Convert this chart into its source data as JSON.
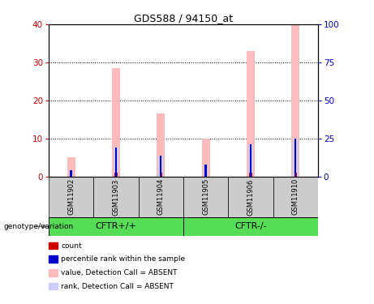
{
  "title": "GDS588 / 94150_at",
  "samples": [
    "GSM11902",
    "GSM11903",
    "GSM11904",
    "GSM11905",
    "GSM11906",
    "GSM11910"
  ],
  "value_absent": [
    5.0,
    28.5,
    16.5,
    10.0,
    33.0,
    40.0
  ],
  "rank_absent": [
    1.5,
    7.5,
    5.5,
    3.0,
    8.5,
    10.0
  ],
  "count_val": [
    1.0,
    1.0,
    1.0,
    1.0,
    1.0,
    1.0
  ],
  "pct_rank_val": [
    1.5,
    7.5,
    5.5,
    3.0,
    8.5,
    10.0
  ],
  "ylim_left": [
    0,
    40
  ],
  "ylim_right": [
    0,
    100
  ],
  "yticks_left": [
    0,
    10,
    20,
    30,
    40
  ],
  "yticks_right": [
    0,
    25,
    50,
    75,
    100
  ],
  "color_value_absent": "#ffbbbb",
  "color_rank_absent": "#ccccff",
  "color_count": "#cc0000",
  "color_pct_rank": "#0000cc",
  "background_color": "#ffffff",
  "label_color_left": "#cc0000",
  "label_color_right": "#0000cc",
  "group_color": "#55dd55",
  "sample_cell_color": "#cccccc",
  "legend_items": [
    [
      "#cc0000",
      "count"
    ],
    [
      "#0000cc",
      "percentile rank within the sample"
    ],
    [
      "#ffbbbb",
      "value, Detection Call = ABSENT"
    ],
    [
      "#ccccff",
      "rank, Detection Call = ABSENT"
    ]
  ]
}
